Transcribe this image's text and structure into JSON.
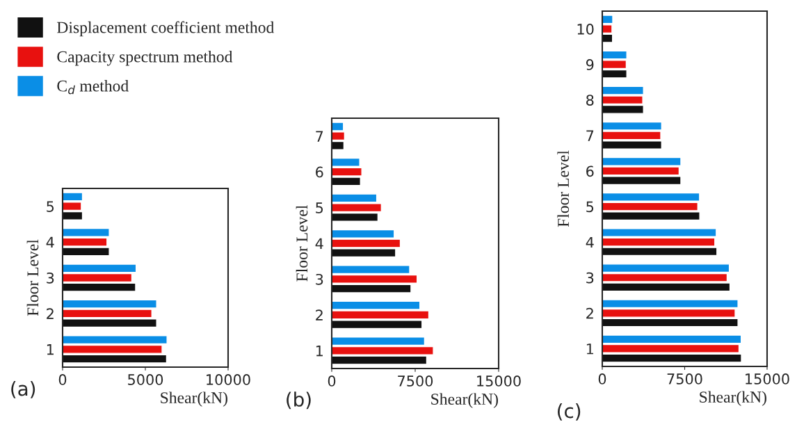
{
  "chart_data": [
    {
      "type": "bar",
      "orientation": "horizontal",
      "xlabel": "Shear(kN)",
      "ylabel": "Floor Level",
      "annotations": [
        "(a)"
      ],
      "legend": "top left",
      "grid": false,
      "categories": [
        "5",
        "4",
        "3",
        "2",
        "1"
      ],
      "xlim": [
        0,
        10000
      ],
      "xticks": [
        0,
        5000,
        10000
      ],
      "series": [
        {
          "name": "Displacement coefficient method",
          "color": "#111111",
          "values": [
            1200,
            2820,
            4410,
            5680,
            6280
          ]
        },
        {
          "name": "Capacity spectrum method",
          "color": "#e8110f",
          "values": [
            1130,
            2680,
            4180,
            5390,
            6010
          ]
        },
        {
          "name": "C$_{d}$ method",
          "color": "#0a8ee6",
          "values": [
            1200,
            2820,
            4440,
            5680,
            6310
          ]
        }
      ]
    },
    {
      "type": "bar",
      "orientation": "horizontal",
      "xlabel": "Shear(kN)",
      "ylabel": "Floor Level",
      "annotations": [
        "(b)"
      ],
      "grid": false,
      "categories": [
        "7",
        "6",
        "5",
        "4",
        "3",
        "2",
        "1"
      ],
      "xlim": [
        0,
        15000
      ],
      "xticks": [
        0,
        7500,
        15000
      ],
      "series": [
        {
          "color": "#111111",
          "values": [
            1090,
            2580,
            4150,
            5740,
            7120,
            8110,
            8530
          ]
        },
        {
          "color": "#e8110f",
          "values": [
            1150,
            2700,
            4460,
            6160,
            7670,
            8720,
            9130
          ]
        },
        {
          "color": "#0a8ee6",
          "values": [
            1050,
            2510,
            4040,
            5610,
            7000,
            7920,
            8340
          ]
        }
      ]
    },
    {
      "type": "bar",
      "orientation": "horizontal",
      "xlabel": "Shear(kN)",
      "ylabel": "Floor Level",
      "annotations": [
        "(c)"
      ],
      "grid": false,
      "categories": [
        "10",
        "9",
        "8",
        "7",
        "6",
        "5",
        "4",
        "3",
        "2",
        "1"
      ],
      "xlim": [
        0,
        15000
      ],
      "xticks": [
        0,
        7500,
        15000
      ],
      "series": [
        {
          "color": "#111111",
          "values": [
            930,
            2230,
            3750,
            5400,
            7150,
            8870,
            10430,
            11620,
            12350,
            12660
          ]
        },
        {
          "color": "#e8110f",
          "values": [
            880,
            2180,
            3680,
            5320,
            6990,
            8690,
            10240,
            11360,
            12090,
            12440
          ]
        },
        {
          "color": "#0a8ee6",
          "values": [
            950,
            2230,
            3750,
            5400,
            7150,
            8850,
            10370,
            11560,
            12350,
            12640
          ]
        }
      ]
    }
  ]
}
